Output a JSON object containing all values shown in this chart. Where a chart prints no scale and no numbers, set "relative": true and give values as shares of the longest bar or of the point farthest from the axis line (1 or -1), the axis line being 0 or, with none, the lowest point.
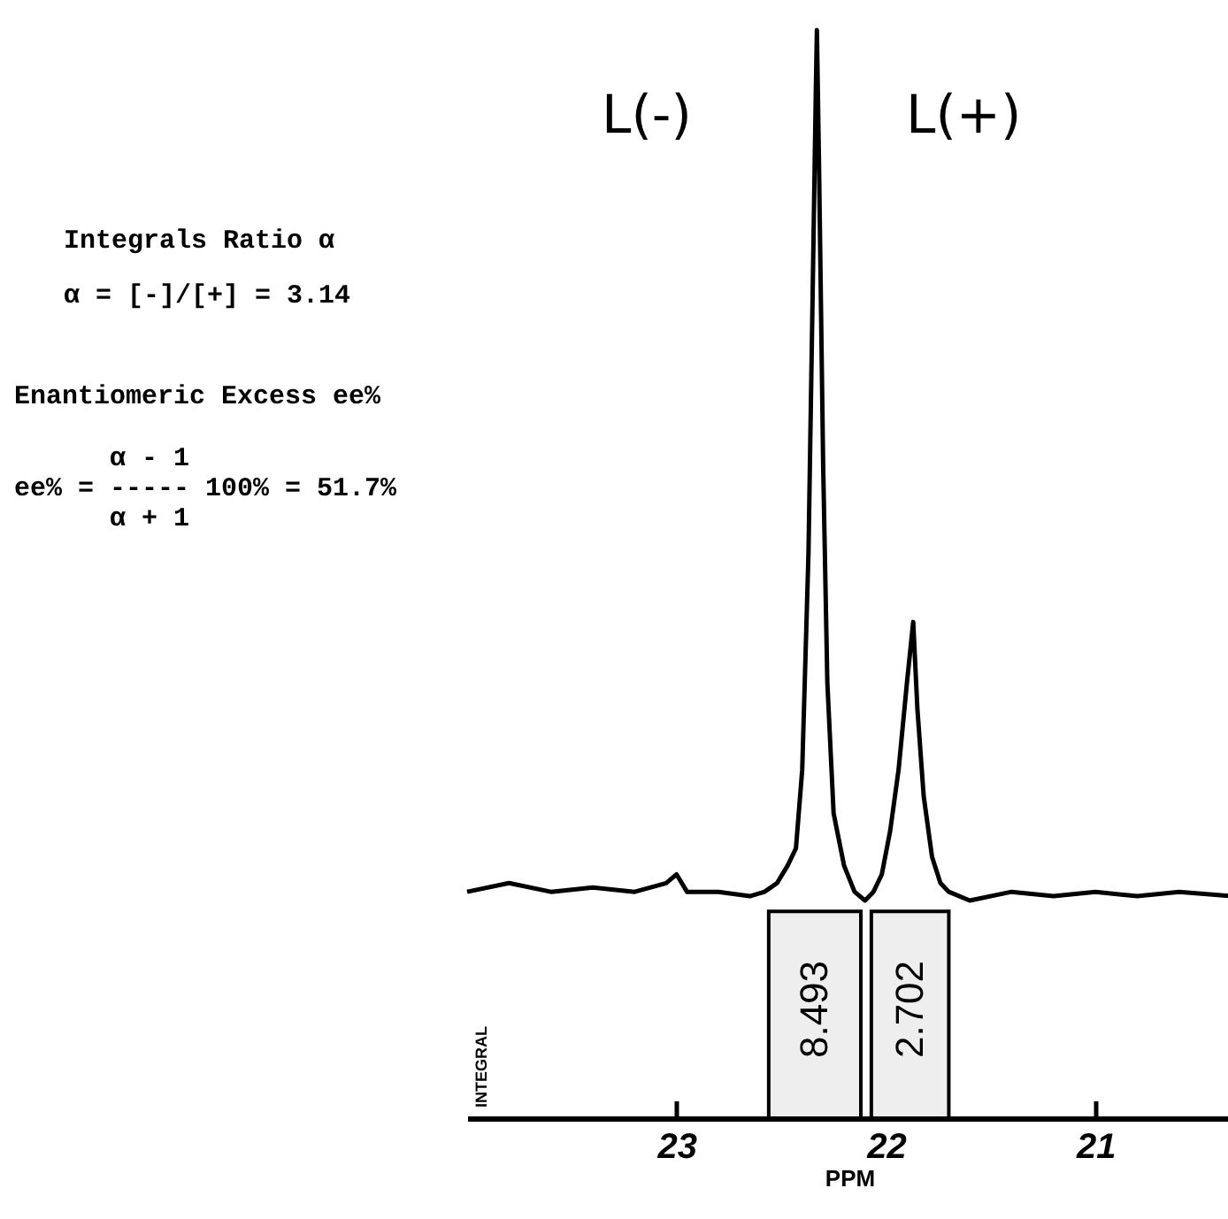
{
  "chart_data": {
    "type": "line",
    "relative": true,
    "xlabel": "PPM",
    "ylabel": "INTEGRAL",
    "xlim": [
      24.0,
      20.35
    ],
    "xticks": [
      23,
      22,
      21
    ],
    "grid": false,
    "marker": "none",
    "line_style": "solid",
    "series": [
      {
        "color": "#000000",
        "x": [
          24.0,
          23.8,
          23.6,
          23.4,
          23.2,
          23.05,
          23.0,
          22.95,
          22.8,
          22.65,
          22.58,
          22.52,
          22.47,
          22.43,
          22.4,
          22.37,
          22.35,
          22.335,
          22.33,
          22.32,
          22.3,
          22.28,
          22.25,
          22.2,
          22.15,
          22.1,
          22.06,
          22.02,
          21.98,
          21.94,
          21.9,
          21.87,
          21.85,
          21.82,
          21.78,
          21.74,
          21.7,
          21.6,
          21.4,
          21.2,
          21.0,
          20.8,
          20.6,
          20.35
        ],
        "values": [
          0.208,
          0.216,
          0.208,
          0.212,
          0.208,
          0.216,
          0.224,
          0.208,
          0.208,
          0.204,
          0.208,
          0.216,
          0.232,
          0.248,
          0.32,
          0.52,
          0.76,
          0.944,
          1.0,
          0.88,
          0.6,
          0.4,
          0.28,
          0.232,
          0.208,
          0.2,
          0.208,
          0.224,
          0.264,
          0.32,
          0.4,
          0.456,
          0.376,
          0.296,
          0.24,
          0.216,
          0.208,
          0.2,
          0.208,
          0.204,
          0.208,
          0.204,
          0.208,
          0.204
        ]
      }
    ],
    "bands": [
      {
        "axis": "x",
        "from": 22.56,
        "to": 22.12,
        "label": "8.493"
      },
      {
        "axis": "x",
        "from": 22.07,
        "to": 21.7,
        "label": "2.702"
      }
    ],
    "annotations": [
      "L(-)",
      "L(+)",
      "Integrals Ratio α",
      "α = [-]/[+] = 3.14",
      "Enantiomeric Excess ee%",
      "      α - 1\nee% = ----- 100% = 51.7%\n      α + 1"
    ]
  }
}
